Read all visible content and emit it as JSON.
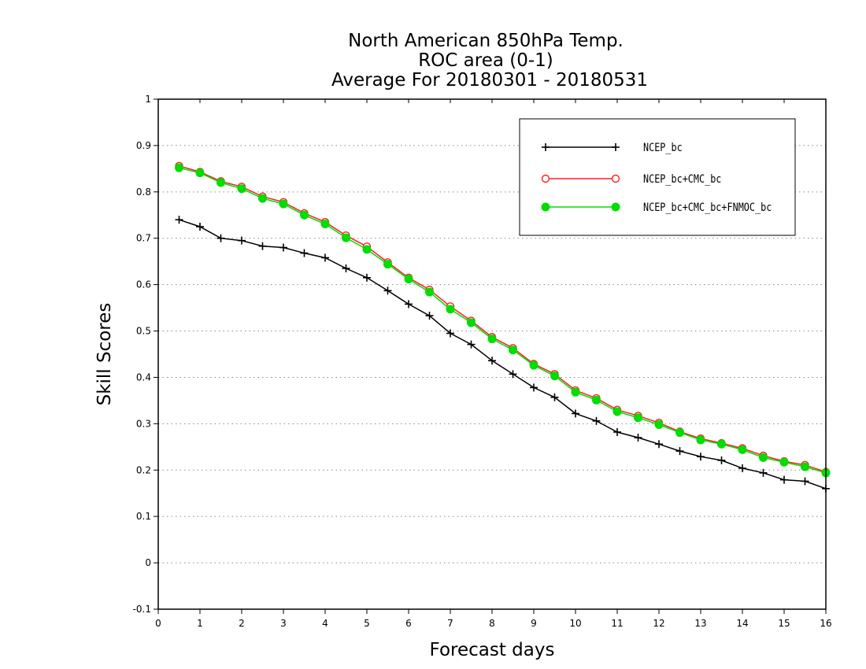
{
  "chart_data": {
    "type": "line",
    "title_lines": [
      "North American 850hPa Temp.",
      "ROC area (0-1)",
      "Average For 20180301 - 20180531"
    ],
    "xlabel": "Forecast days",
    "ylabel": "Skill Scores",
    "xlim": [
      0,
      16
    ],
    "ylim": [
      -0.1,
      1
    ],
    "x_ticks": [
      0,
      1,
      2,
      3,
      4,
      5,
      6,
      7,
      8,
      9,
      10,
      11,
      12,
      13,
      14,
      15,
      16
    ],
    "y_ticks": [
      -0.1,
      0,
      0.1,
      0.2,
      0.3,
      0.4,
      0.5,
      0.6,
      0.7,
      0.8,
      0.9,
      1
    ],
    "y_tick_labels": [
      "-0.1",
      "0",
      "0.1",
      "0.2",
      "0.3",
      "0.4",
      "0.5",
      "0.6",
      "0.7",
      "0.8",
      "0.9",
      "1"
    ],
    "grid": "horizontal-dotted",
    "legend_position": "top-right",
    "x": [
      0.5,
      1,
      1.5,
      2,
      2.5,
      3,
      3.5,
      4,
      4.5,
      5,
      5.5,
      6,
      6.5,
      7,
      7.5,
      8,
      8.5,
      9,
      9.5,
      10,
      10.5,
      11,
      11.5,
      12,
      12.5,
      13,
      13.5,
      14,
      14.5,
      15,
      15.5,
      16
    ],
    "series": [
      {
        "name": "NCEP_bc",
        "color": "#000000",
        "marker": "plus",
        "values": [
          0.74,
          0.725,
          0.7,
          0.695,
          0.683,
          0.68,
          0.668,
          0.658,
          0.635,
          0.615,
          0.587,
          0.558,
          0.533,
          0.495,
          0.471,
          0.436,
          0.407,
          0.378,
          0.357,
          0.322,
          0.306,
          0.282,
          0.27,
          0.256,
          0.241,
          0.229,
          0.221,
          0.204,
          0.194,
          0.179,
          0.176,
          0.16
        ]
      },
      {
        "name": "NCEP_bc+CMC_bc",
        "color": "#ff2020",
        "marker": "open-circle",
        "values": [
          0.856,
          0.843,
          0.823,
          0.811,
          0.79,
          0.778,
          0.754,
          0.735,
          0.706,
          0.682,
          0.648,
          0.615,
          0.589,
          0.553,
          0.522,
          0.487,
          0.463,
          0.429,
          0.407,
          0.372,
          0.355,
          0.33,
          0.317,
          0.302,
          0.283,
          0.268,
          0.258,
          0.247,
          0.231,
          0.219,
          0.211,
          0.196
        ]
      },
      {
        "name": "NCEP_bc+CMC_bc+FNMOC_bc",
        "color": "#00dd00",
        "marker": "filled-circle",
        "values": [
          0.852,
          0.841,
          0.82,
          0.807,
          0.786,
          0.774,
          0.75,
          0.731,
          0.701,
          0.676,
          0.644,
          0.612,
          0.584,
          0.547,
          0.518,
          0.483,
          0.459,
          0.426,
          0.403,
          0.368,
          0.351,
          0.326,
          0.313,
          0.298,
          0.281,
          0.265,
          0.256,
          0.244,
          0.227,
          0.217,
          0.207,
          0.194
        ]
      }
    ]
  }
}
